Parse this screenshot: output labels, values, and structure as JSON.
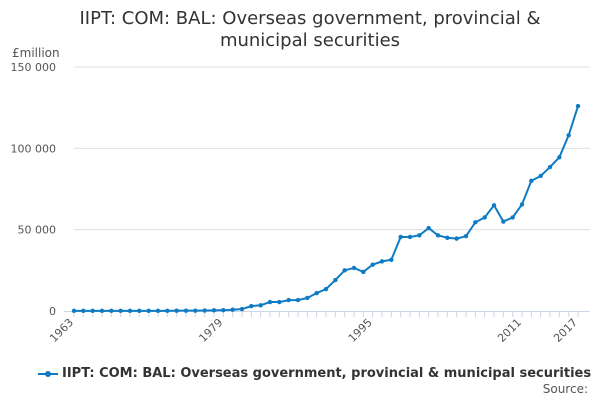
{
  "chart_data": {
    "type": "line",
    "title": "IIPT: COM: BAL: Overseas government, provincial & municipal securities",
    "ylabel": "£million",
    "xlabel": "",
    "ylim": [
      0,
      150000
    ],
    "yticks": [
      0,
      50000,
      100000,
      150000
    ],
    "ytick_labels": [
      "0",
      "50 000",
      "100 000",
      "150 000"
    ],
    "xtick_labels": [
      "1963",
      "1979",
      "1995",
      "2011",
      "2017"
    ],
    "x": [
      1963,
      1964,
      1965,
      1966,
      1967,
      1968,
      1969,
      1970,
      1971,
      1972,
      1973,
      1974,
      1975,
      1976,
      1977,
      1978,
      1979,
      1980,
      1981,
      1982,
      1983,
      1984,
      1985,
      1986,
      1987,
      1988,
      1989,
      1990,
      1991,
      1992,
      1993,
      1994,
      1995,
      1996,
      1997,
      1998,
      1999,
      2000,
      2001,
      2002,
      2003,
      2004,
      2005,
      2006,
      2007,
      2008,
      2009,
      2010,
      2011,
      2012,
      2013,
      2014,
      2015,
      2016,
      2017
    ],
    "series": [
      {
        "name": "IIPT: COM: BAL: Overseas government, provincial & municipal securities",
        "color": "#0f7bc4",
        "values": [
          100,
          100,
          100,
          100,
          100,
          100,
          100,
          100,
          100,
          100,
          100,
          200,
          200,
          200,
          300,
          400,
          500,
          800,
          1200,
          3000,
          3500,
          5500,
          5500,
          6700,
          6700,
          8000,
          11000,
          13500,
          19000,
          25000,
          26500,
          24000,
          28500,
          30500,
          31500,
          45500,
          45500,
          46500,
          51000,
          46500,
          45000,
          44500,
          46000,
          54500,
          57500,
          65000,
          55000,
          57500,
          65500,
          80000,
          83000,
          88500,
          94500,
          108000,
          126000
        ]
      }
    ],
    "grid": true,
    "legend": "bottom"
  },
  "source_label": "Source:"
}
